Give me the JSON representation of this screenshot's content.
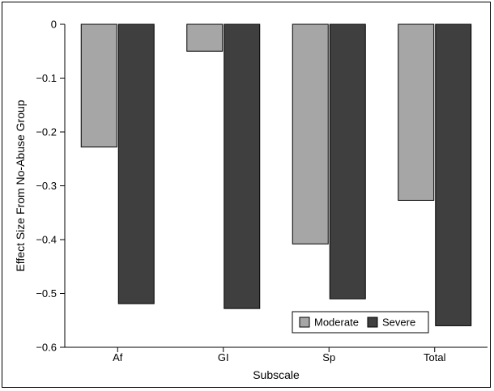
{
  "chart_data": {
    "type": "bar",
    "title": "",
    "xlabel": "Subscale",
    "ylabel": "Effect Size From No-Abuse Group",
    "categories": [
      "Af",
      "GI",
      "Sp",
      "Total"
    ],
    "series": [
      {
        "name": "Moderate",
        "color": "#a6a6a6",
        "values": [
          -0.228,
          -0.05,
          -0.408,
          -0.327
        ]
      },
      {
        "name": "Severe",
        "color": "#3f3f3f",
        "values": [
          -0.519,
          -0.528,
          -0.51,
          -0.56
        ]
      }
    ],
    "ylim": [
      -0.6,
      0
    ],
    "yticks": [
      0,
      -0.1,
      -0.2,
      -0.3,
      -0.4,
      -0.5,
      -0.6
    ],
    "ytick_labels": [
      "0",
      "−0.1",
      "−0.2",
      "−0.3",
      "−0.4",
      "−0.5",
      "−0.6"
    ],
    "grid": false,
    "legend_position": "bottom-right",
    "legend_labels": [
      "Moderate",
      "Severe"
    ]
  }
}
